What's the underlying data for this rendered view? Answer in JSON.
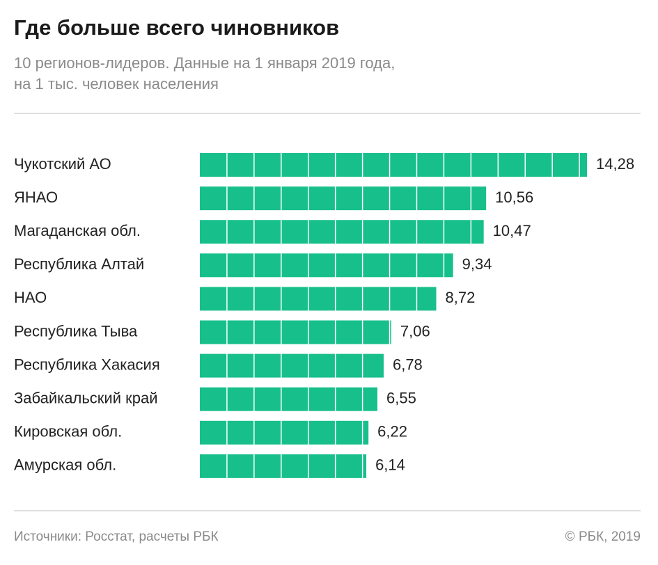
{
  "chart_data": {
    "type": "bar",
    "orientation": "horizontal",
    "title": "Где больше всего чиновников",
    "subtitle": [
      "10 регионов-лидеров. Данные на 1 января 2019 года,",
      "на 1 тыс. человек населения"
    ],
    "categories": [
      "Чукотский АО",
      "ЯНАО",
      "Магаданская обл.",
      "Республика Алтай",
      "НАО",
      "Республика Тыва",
      "Республика Хакасия",
      "Забайкальский край",
      "Кировская обл.",
      "Амурская обл."
    ],
    "values": [
      14.28,
      10.56,
      10.47,
      9.34,
      8.72,
      7.06,
      6.78,
      6.55,
      6.22,
      6.14
    ],
    "value_labels": [
      "14,28",
      "10,56",
      "10,47",
      "9,34",
      "8,72",
      "7,06",
      "6,78",
      "6,55",
      "6,22",
      "6,14"
    ],
    "color": "#17bf8b",
    "source": "Источники: Росстат, расчеты РБК",
    "copyright": "© РБК, 2019"
  }
}
